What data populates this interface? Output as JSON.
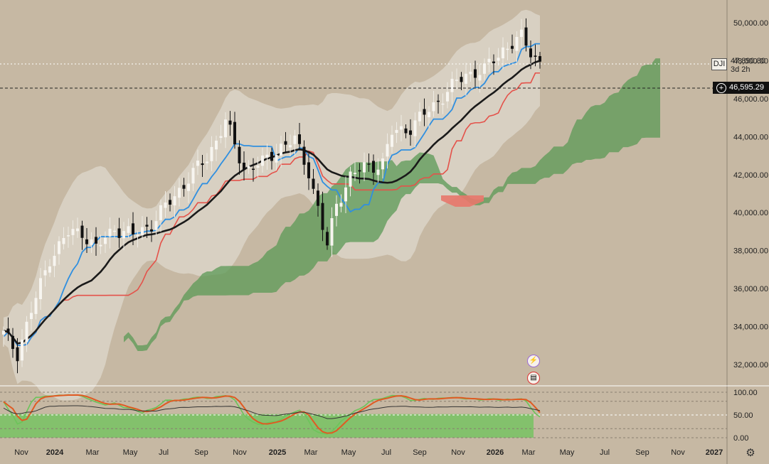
{
  "chart_data": {
    "type": "candlestick",
    "symbol": "DJI",
    "price_label": "47,890.80",
    "countdown_label": "3d 2h",
    "crosshair_label": "46,595.29",
    "y_ticks": [
      "50,000.00",
      "48,000.00",
      "46,000.00",
      "44,000.00",
      "42,000.00",
      "40,000.00",
      "38,000.00",
      "36,000.00",
      "34,000.00",
      "32,000.00"
    ],
    "y_tick_values": [
      50000,
      48000,
      46000,
      44000,
      42000,
      40000,
      38000,
      36000,
      34000,
      32000
    ],
    "x_ticks": [
      "Nov",
      "2024",
      "Mar",
      "May",
      "Jul",
      "Sep",
      "Nov",
      "2025",
      "Mar",
      "May",
      "Jul",
      "Sep",
      "Nov",
      "2026",
      "Mar",
      "May",
      "Jul",
      "Sep",
      "Nov",
      "2027"
    ],
    "x_ticks_bold": [
      "2024",
      "2025",
      "2026",
      "2027"
    ],
    "osc_ticks": [
      "100.00",
      "50.00",
      "0.00"
    ],
    "osc_tick_values": [
      100,
      50,
      0
    ],
    "key_points": [
      {
        "x": 0,
        "y": 33600
      },
      {
        "x": 3,
        "y": 32600
      },
      {
        "x": 6,
        "y": 34800
      },
      {
        "x": 10,
        "y": 37600
      },
      {
        "x": 14,
        "y": 38900
      },
      {
        "x": 17,
        "y": 39000
      },
      {
        "x": 20,
        "y": 38100
      },
      {
        "x": 24,
        "y": 39200
      },
      {
        "x": 28,
        "y": 38800
      },
      {
        "x": 32,
        "y": 39400
      },
      {
        "x": 36,
        "y": 40600
      },
      {
        "x": 40,
        "y": 41800
      },
      {
        "x": 44,
        "y": 42900
      },
      {
        "x": 48,
        "y": 44800
      },
      {
        "x": 52,
        "y": 42300
      },
      {
        "x": 56,
        "y": 42600
      },
      {
        "x": 60,
        "y": 43500
      },
      {
        "x": 63,
        "y": 43800
      },
      {
        "x": 66,
        "y": 42200
      },
      {
        "x": 68,
        "y": 40200
      },
      {
        "x": 70,
        "y": 38200
      },
      {
        "x": 72,
        "y": 40500
      },
      {
        "x": 75,
        "y": 41900
      },
      {
        "x": 78,
        "y": 42400
      },
      {
        "x": 82,
        "y": 42600
      },
      {
        "x": 84,
        "y": 44200
      },
      {
        "x": 88,
        "y": 44500
      },
      {
        "x": 92,
        "y": 45400
      },
      {
        "x": 96,
        "y": 46400
      },
      {
        "x": 100,
        "y": 47300
      },
      {
        "x": 104,
        "y": 47500
      },
      {
        "x": 108,
        "y": 48600
      },
      {
        "x": 112,
        "y": 49200
      },
      {
        "x": 114,
        "y": 48500
      },
      {
        "x": 116,
        "y": 47900
      }
    ],
    "oscillator": {
      "ylim": [
        0,
        100
      ],
      "levels": [
        100,
        50,
        0
      ]
    }
  },
  "icons": {
    "lightning": "lightning-event-icon",
    "flag": "us-flag-event-icon",
    "settings": "gear-icon",
    "crosshair": "plus-circle-icon"
  },
  "colors": {
    "background": "#c6b8a3",
    "blue_line": "#2f8fe0",
    "red_line": "#e4524a",
    "black_line": "#1a1a1a",
    "cloud_green": "#5b9a55",
    "cloud_red": "#e8776b",
    "band": "#e2ddd2",
    "osc_orange": "#e05a22",
    "osc_green": "#6cc45a"
  }
}
